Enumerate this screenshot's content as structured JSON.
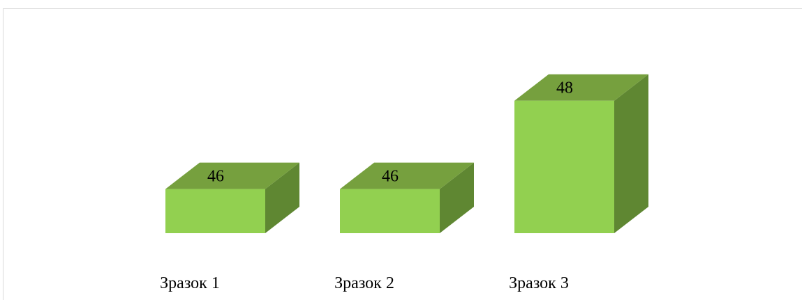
{
  "chart_data": {
    "type": "bar",
    "style": "3d-box",
    "categories": [
      "Зразок 1",
      "Зразок 2",
      "Зразок 3"
    ],
    "values": [
      46,
      46,
      48
    ],
    "data_labels": [
      "46",
      "46",
      "48"
    ],
    "ylim": [
      45,
      48.5
    ],
    "grid": false,
    "legend": "none",
    "colors": {
      "front": "#92d050",
      "top": "#76a03e",
      "side": "#5f8732",
      "frame": "#d9d9d9"
    }
  }
}
